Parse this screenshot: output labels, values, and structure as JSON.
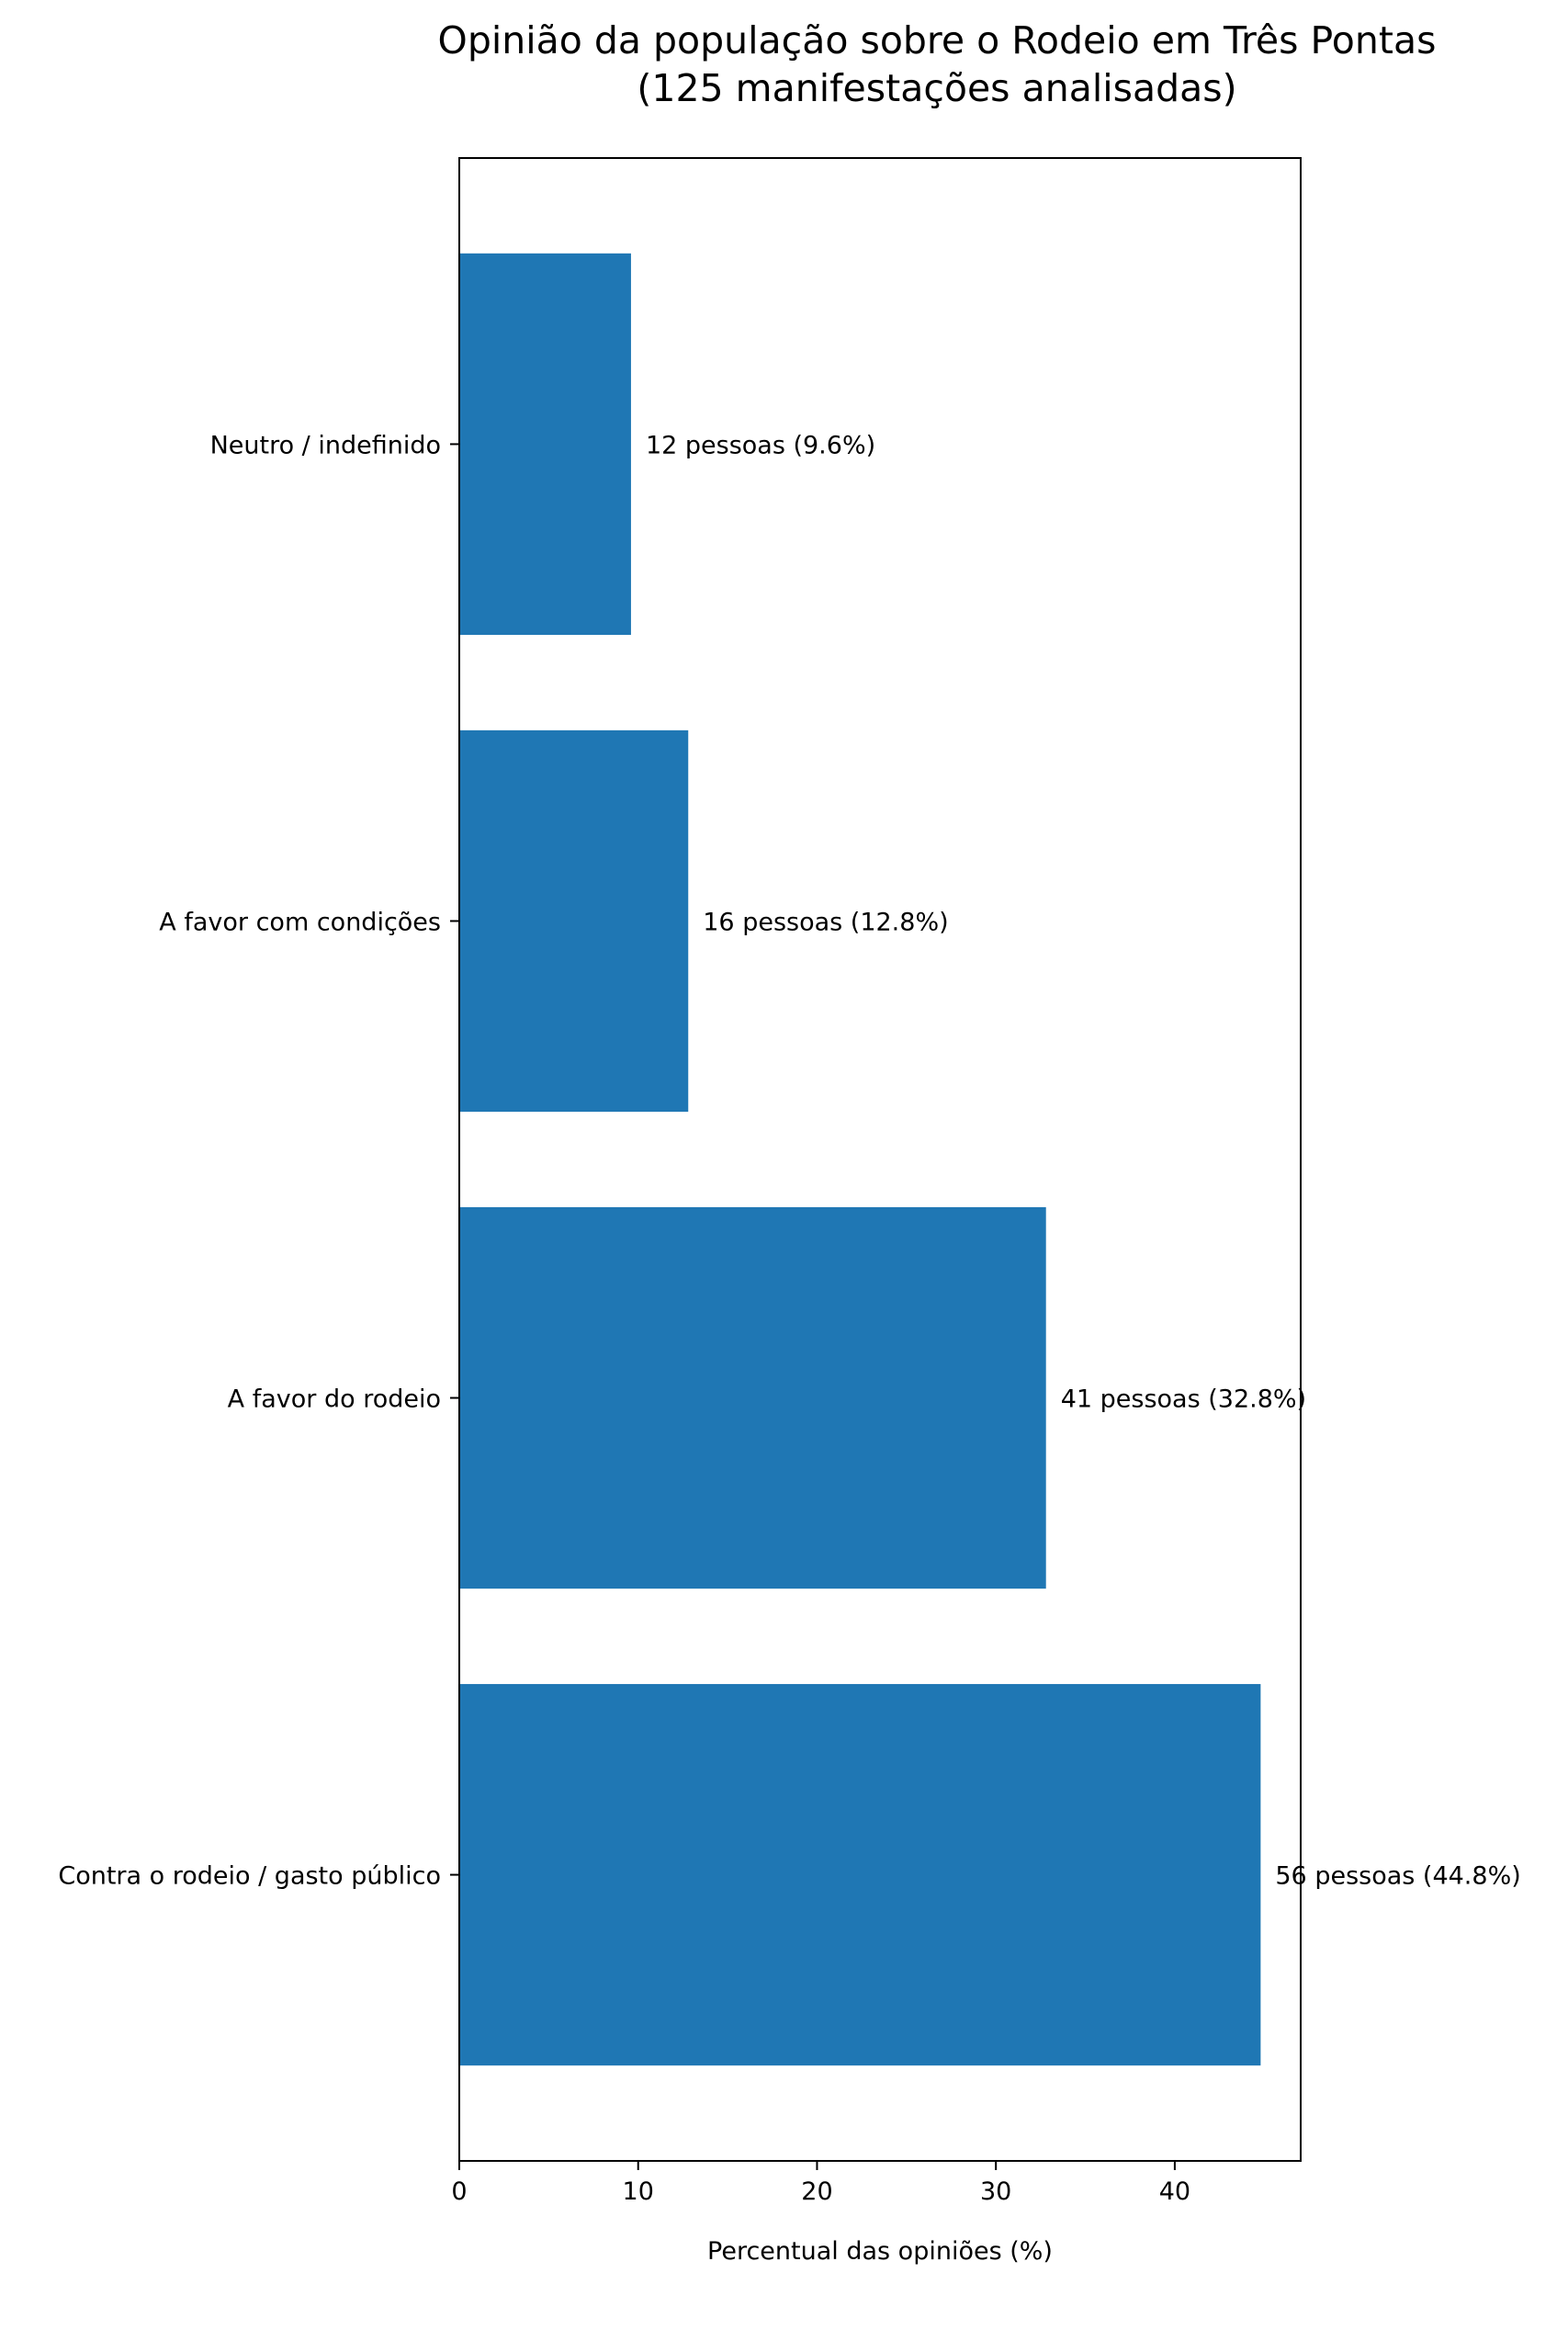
{
  "chart_data": {
    "type": "bar",
    "orientation": "horizontal",
    "title_lines": [
      "Opinião da população sobre o Rodeio em Três Pontas",
      "(125 manifestações analisadas)"
    ],
    "xlabel": "Percentual das opiniões (%)",
    "ylabel": "",
    "categories": [
      "Contra o rodeio / gasto público",
      "A favor do rodeio",
      "A favor com condições",
      "Neutro / indefinido"
    ],
    "values": [
      44.8,
      32.8,
      12.8,
      9.6
    ],
    "bar_labels": [
      "56 pessoas (44.8%)",
      "41 pessoas (32.8%)",
      "16 pessoas (12.8%)",
      "12 pessoas (9.6%)"
    ],
    "xlim": [
      0,
      47.04
    ],
    "xticks": [
      0,
      10,
      20,
      30,
      40
    ],
    "grid": false,
    "bar_color": "#1f77b4"
  }
}
